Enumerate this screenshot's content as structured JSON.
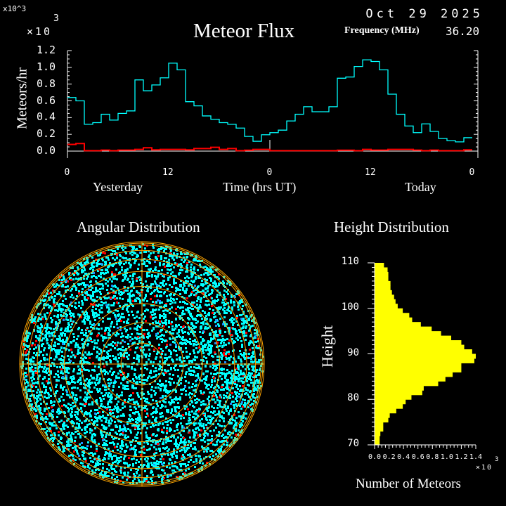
{
  "header": {
    "date": "Oct 29 2025",
    "title": "Meteor Flux",
    "frequency_label": "Frequency (MHz)",
    "frequency_value": "36.20",
    "y_multiplier": "×10",
    "y_multiplier_exp": "3"
  },
  "chart_data": [
    {
      "type": "line",
      "title": "Meteor Flux",
      "xlabel": "Time (hrs UT)",
      "ylabel": "Meteors/hr",
      "y_multiplier": "x10^3",
      "ylim": [
        0,
        1.2
      ],
      "xlim": [
        0,
        48
      ],
      "x_tick_labels": [
        "0",
        "12",
        "0",
        "12",
        "0"
      ],
      "y_tick_labels": [
        "1.2",
        "1.0",
        "0.8",
        "0.6",
        "0.4",
        "0.2",
        "0.0"
      ],
      "day_labels": [
        "Yesterday",
        "Today"
      ],
      "step": true,
      "series": [
        {
          "color": "#00ffff",
          "values": [
            0.64,
            0.6,
            0.32,
            0.34,
            0.44,
            0.37,
            0.45,
            0.48,
            0.85,
            0.72,
            0.79,
            0.875,
            1.05,
            0.97,
            0.59,
            0.54,
            0.42,
            0.38,
            0.34,
            0.32,
            0.275,
            0.175,
            0.117,
            0.195,
            0.22,
            0.25,
            0.36,
            0.44,
            0.53,
            0.47,
            0.47,
            0.53,
            0.87,
            0.885,
            1.01,
            1.09,
            1.07,
            0.97,
            0.68,
            0.44,
            0.3,
            0.22,
            0.325,
            0.235,
            0.15,
            0.125,
            0.11,
            0.16
          ]
        },
        {
          "color": "#ff0000",
          "values": [
            0.08,
            0.09,
            0.005,
            0.005,
            0.012,
            0.005,
            0.012,
            0.012,
            0.02,
            0.04,
            0.015,
            0.02,
            0.02,
            0.02,
            0.015,
            0.03,
            0.03,
            0.045,
            0.02,
            0.03,
            0.005,
            0.01,
            0.02,
            0.02,
            0.005,
            0.005,
            0.005,
            0.005,
            0.005,
            0.005,
            0.005,
            0.005,
            0.01,
            0.01,
            0.005,
            0.02,
            0.012,
            0.012,
            0.02,
            0.02,
            0.02,
            0.012,
            0.005,
            0.012,
            0.005,
            0.005,
            0.005,
            0.015
          ]
        }
      ]
    },
    {
      "type": "scatter",
      "title": "Angular Distribution",
      "projection": "polar",
      "rings_deg": [
        10,
        20,
        30,
        40,
        50,
        60,
        70,
        80,
        90
      ],
      "colors": {
        "points": "#00ffff",
        "secondary_points": "#ff0000",
        "rare_points": "#1e90ff",
        "grid": "#ffa500"
      }
    },
    {
      "type": "bar",
      "orientation": "horizontal",
      "title": "Height Distribution",
      "ylabel": "Height",
      "xlabel": "Number of Meteors",
      "x_multiplier": "×10",
      "x_multiplier_exp": "3",
      "ylim": [
        70,
        110
      ],
      "xlim": [
        0,
        1.4
      ],
      "y_tick_labels": [
        "110",
        "100",
        "90",
        "80",
        "70"
      ],
      "x_tick_labels": [
        "0.0",
        "0.2",
        "0.4",
        "0.6",
        "0.8",
        "1.0",
        "1.2",
        "1.4"
      ],
      "color": "#ffff00",
      "bin_tops": [
        110,
        109,
        108,
        107,
        106,
        105,
        104,
        103,
        102,
        101,
        100,
        99,
        98,
        97,
        96,
        95,
        94,
        93,
        92,
        91,
        90,
        89,
        88,
        87,
        86,
        85,
        84,
        83,
        82,
        81,
        80,
        79,
        78,
        77,
        76,
        75,
        74,
        73,
        72,
        71
      ],
      "values": [
        0.13,
        0.18,
        0.19,
        0.19,
        0.22,
        0.22,
        0.24,
        0.27,
        0.29,
        0.32,
        0.39,
        0.48,
        0.52,
        0.64,
        0.79,
        0.92,
        1.06,
        1.2,
        1.24,
        1.35,
        1.4,
        1.38,
        1.2,
        1.2,
        1.08,
        0.98,
        0.88,
        0.68,
        0.66,
        0.51,
        0.43,
        0.39,
        0.3,
        0.21,
        0.19,
        0.12,
        0.12,
        0.08,
        0.07,
        0.07
      ]
    }
  ]
}
